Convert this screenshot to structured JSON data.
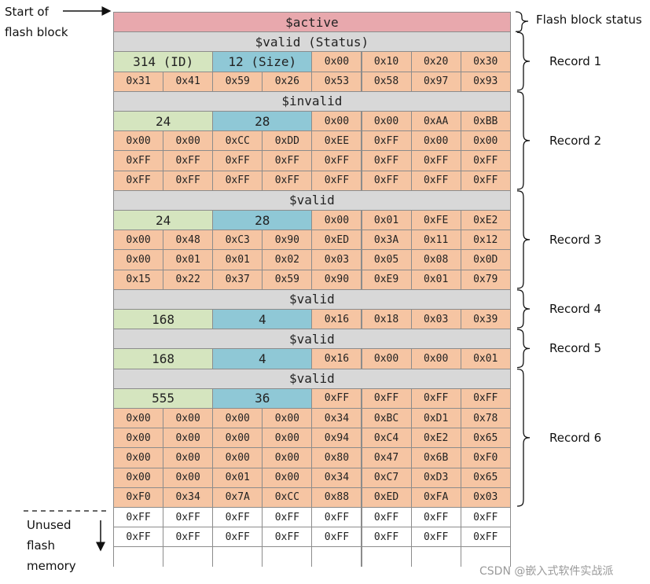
{
  "labels": {
    "start_of_flash_block": [
      "Start of",
      "flash block"
    ],
    "flash_block_status": "Flash block status",
    "unused_flash_memory": [
      "Unused",
      "flash",
      "memory"
    ],
    "watermark": "CSDN @嵌入式软件实战派"
  },
  "rows": [
    {
      "kind": "header",
      "text": "$active",
      "style": "active"
    },
    {
      "kind": "header",
      "text": "$valid (Status)",
      "style": "status"
    },
    {
      "kind": "meta",
      "id": "314 (ID)",
      "size": "12 (Size)",
      "data": [
        "0x00",
        "0x10",
        "0x20",
        "0x30"
      ]
    },
    {
      "kind": "data",
      "data": [
        "0x31",
        "0x41",
        "0x59",
        "0x26",
        "0x53",
        "0x58",
        "0x97",
        "0x93"
      ]
    },
    {
      "kind": "header",
      "text": "$invalid",
      "style": "status"
    },
    {
      "kind": "meta",
      "id": "24",
      "size": "28",
      "data": [
        "0x00",
        "0x00",
        "0xAA",
        "0xBB"
      ]
    },
    {
      "kind": "data",
      "data": [
        "0x00",
        "0x00",
        "0xCC",
        "0xDD",
        "0xEE",
        "0xFF",
        "0x00",
        "0x00"
      ]
    },
    {
      "kind": "data",
      "data": [
        "0xFF",
        "0xFF",
        "0xFF",
        "0xFF",
        "0xFF",
        "0xFF",
        "0xFF",
        "0xFF"
      ]
    },
    {
      "kind": "data",
      "data": [
        "0xFF",
        "0xFF",
        "0xFF",
        "0xFF",
        "0xFF",
        "0xFF",
        "0xFF",
        "0xFF"
      ]
    },
    {
      "kind": "header",
      "text": "$valid",
      "style": "status"
    },
    {
      "kind": "meta",
      "id": "24",
      "size": "28",
      "data": [
        "0x00",
        "0x01",
        "0xFE",
        "0xE2"
      ]
    },
    {
      "kind": "data",
      "data": [
        "0x00",
        "0x48",
        "0xC3",
        "0x90",
        "0xED",
        "0x3A",
        "0x11",
        "0x12"
      ]
    },
    {
      "kind": "data",
      "data": [
        "0x00",
        "0x01",
        "0x01",
        "0x02",
        "0x03",
        "0x05",
        "0x08",
        "0x0D"
      ]
    },
    {
      "kind": "data",
      "data": [
        "0x15",
        "0x22",
        "0x37",
        "0x59",
        "0x90",
        "0xE9",
        "0x01",
        "0x79"
      ]
    },
    {
      "kind": "header",
      "text": "$valid",
      "style": "status"
    },
    {
      "kind": "meta",
      "id": "168",
      "size": "4",
      "data": [
        "0x16",
        "0x18",
        "0x03",
        "0x39"
      ]
    },
    {
      "kind": "header",
      "text": "$valid",
      "style": "status"
    },
    {
      "kind": "meta",
      "id": "168",
      "size": "4",
      "data": [
        "0x16",
        "0x00",
        "0x00",
        "0x01"
      ]
    },
    {
      "kind": "header",
      "text": "$valid",
      "style": "status"
    },
    {
      "kind": "meta",
      "id": "555",
      "size": "36",
      "data": [
        "0xFF",
        "0xFF",
        "0xFF",
        "0xFF"
      ]
    },
    {
      "kind": "data",
      "data": [
        "0x00",
        "0x00",
        "0x00",
        "0x00",
        "0x34",
        "0xBC",
        "0xD1",
        "0x78"
      ]
    },
    {
      "kind": "data",
      "data": [
        "0x00",
        "0x00",
        "0x00",
        "0x00",
        "0x94",
        "0xC4",
        "0xE2",
        "0x65"
      ]
    },
    {
      "kind": "data",
      "data": [
        "0x00",
        "0x00",
        "0x00",
        "0x00",
        "0x80",
        "0x47",
        "0x6B",
        "0xF0"
      ]
    },
    {
      "kind": "data",
      "data": [
        "0x00",
        "0x00",
        "0x01",
        "0x00",
        "0x34",
        "0xC7",
        "0xD3",
        "0x65"
      ]
    },
    {
      "kind": "data",
      "data": [
        "0xF0",
        "0x34",
        "0x7A",
        "0xCC",
        "0x88",
        "0xED",
        "0xFA",
        "0x03"
      ]
    },
    {
      "kind": "free",
      "data": [
        "0xFF",
        "0xFF",
        "0xFF",
        "0xFF",
        "0xFF",
        "0xFF",
        "0xFF",
        "0xFF"
      ]
    },
    {
      "kind": "free",
      "data": [
        "0xFF",
        "0xFF",
        "0xFF",
        "0xFF",
        "0xFF",
        "0xFF",
        "0xFF",
        "0xFF"
      ]
    },
    {
      "kind": "empty"
    }
  ],
  "records": [
    {
      "label": "Record 1",
      "first_row": 1,
      "last_row": 3
    },
    {
      "label": "Record 2",
      "first_row": 4,
      "last_row": 8
    },
    {
      "label": "Record 3",
      "first_row": 9,
      "last_row": 13
    },
    {
      "label": "Record 4",
      "first_row": 14,
      "last_row": 15
    },
    {
      "label": "Record 5",
      "first_row": 16,
      "last_row": 17
    },
    {
      "label": "Record 6",
      "first_row": 18,
      "last_row": 24
    }
  ],
  "colors": {
    "active": "#e8a8ad",
    "status": "#d8d8d8",
    "id": "#d5e5bf",
    "size": "#8fc8d6",
    "data": "#f6c5a3",
    "free": "#ffffff"
  }
}
